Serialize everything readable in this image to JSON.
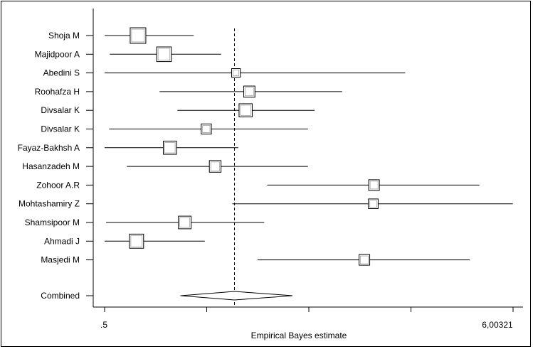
{
  "chart_data": {
    "type": "forest",
    "xlabel": "Empirical Bayes estimate",
    "xlim": [
      0.5,
      6.00321
    ],
    "x_tick_labels": [
      ".5",
      "6,00321"
    ],
    "x_tick_values": [
      0.5,
      1.875802,
      3.251605,
      4.627407,
      6.00321
    ],
    "reference_line": 2.25,
    "studies": [
      {
        "name": "Shoja M",
        "estimate": 0.95,
        "lower": 0.5,
        "upper": 1.7,
        "weight": 1.0
      },
      {
        "name": "Majidpoor A",
        "estimate": 1.3,
        "lower": 0.57,
        "upper": 2.07,
        "weight": 0.9
      },
      {
        "name": "Abedini S",
        "estimate": 2.27,
        "lower": 0.5,
        "upper": 4.55,
        "weight": 0.3
      },
      {
        "name": "Roohafza H",
        "estimate": 2.45,
        "lower": 1.24,
        "upper": 3.7,
        "weight": 0.55
      },
      {
        "name": "Divsalar K",
        "estimate": 2.4,
        "lower": 1.48,
        "upper": 3.33,
        "weight": 0.75
      },
      {
        "name": "Divsalar K",
        "estimate": 1.87,
        "lower": 0.56,
        "upper": 3.24,
        "weight": 0.45
      },
      {
        "name": "Fayaz-Bakhsh A",
        "estimate": 1.38,
        "lower": 0.5,
        "upper": 2.3,
        "weight": 0.75
      },
      {
        "name": "Hasanzadeh M",
        "estimate": 1.99,
        "lower": 0.8,
        "upper": 3.24,
        "weight": 0.6
      },
      {
        "name": "Zohoor A.R",
        "estimate": 4.13,
        "lower": 2.69,
        "upper": 5.55,
        "weight": 0.5
      },
      {
        "name": "Mohtashamiry Z",
        "estimate": 4.12,
        "lower": 2.22,
        "upper": 6.0,
        "weight": 0.4
      },
      {
        "name": "Shamsipoor M",
        "estimate": 1.58,
        "lower": 0.52,
        "upper": 2.65,
        "weight": 0.7
      },
      {
        "name": "Ahmadi J",
        "estimate": 0.93,
        "lower": 0.5,
        "upper": 1.85,
        "weight": 0.85
      },
      {
        "name": "Masjedi M",
        "estimate": 4.0,
        "lower": 2.56,
        "upper": 5.42,
        "weight": 0.5
      }
    ],
    "combined": {
      "name": "Combined",
      "estimate": 2.25,
      "lower": 1.52,
      "upper": 3.03
    }
  }
}
